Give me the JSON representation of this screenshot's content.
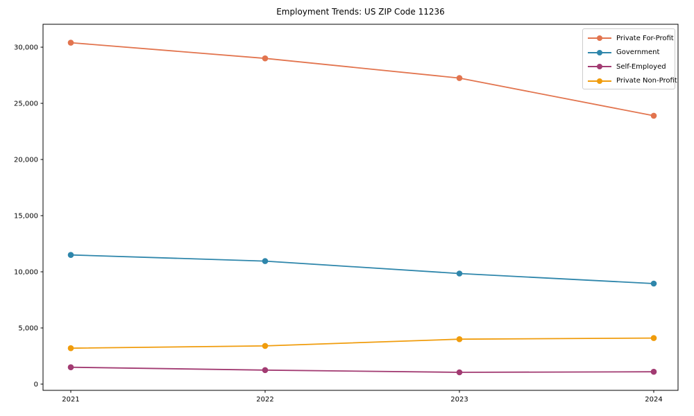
{
  "page": {
    "background": "#ffffff"
  },
  "chart_data": {
    "type": "line",
    "title": "Employment Trends: US ZIP Code 11236",
    "xlabel": "",
    "ylabel": "",
    "x": [
      2021,
      2022,
      2023,
      2024
    ],
    "x_tick_labels": [
      "2021",
      "2022",
      "2023",
      "2024"
    ],
    "yticks": [
      0,
      5000,
      10000,
      15000,
      20000,
      25000,
      30000
    ],
    "y_tick_labels": [
      "0",
      "5,000",
      "10,000",
      "15,000",
      "20,000",
      "25,000",
      "30,000"
    ],
    "ylim": [
      -555,
      32040
    ],
    "grid": false,
    "marker": "o",
    "legend_position": "upper right",
    "series": [
      {
        "name": "Private For-Profit",
        "color": "#E2744E",
        "values": [
          30400,
          29000,
          27250,
          23900
        ]
      },
      {
        "name": "Government",
        "color": "#2E86AB",
        "values": [
          11500,
          10950,
          9850,
          8950
        ]
      },
      {
        "name": "Self-Employed",
        "color": "#A23B72",
        "values": [
          1500,
          1250,
          1050,
          1100
        ]
      },
      {
        "name": "Private Non-Profit",
        "color": "#F09C0C",
        "values": [
          3200,
          3400,
          4000,
          4100
        ]
      }
    ]
  }
}
